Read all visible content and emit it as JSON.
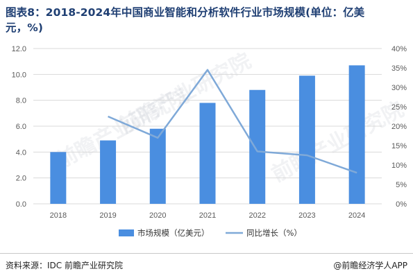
{
  "header": {
    "title_line1": "图表8：2018-2024年中国商业智能和分析软件行业市场规模(单位：亿美",
    "title_line2": "元，%)"
  },
  "footer": {
    "source": "资料来源：IDC 前瞻产业研究院",
    "brand": "@前瞻经济学人APP"
  },
  "watermark": {
    "text": "前瞻产业研究院"
  },
  "colors": {
    "bar": "#4a8ee0",
    "line": "#7fa9d8",
    "grid": "#d9d9d9",
    "axis_text": "#595959"
  },
  "chart_data": {
    "type": "bar",
    "categories": [
      "2018",
      "2019",
      "2020",
      "2021",
      "2022",
      "2023",
      "2024"
    ],
    "series": [
      {
        "name": "市场规模（亿美元）",
        "type": "bar",
        "axis": "left",
        "values": [
          4.0,
          4.9,
          5.8,
          7.8,
          8.8,
          9.9,
          10.7
        ]
      },
      {
        "name": "同比增长（%）",
        "type": "line",
        "axis": "right",
        "values": [
          null,
          22.5,
          17.0,
          34.5,
          13.5,
          12.5,
          8.0
        ]
      }
    ],
    "y_left": {
      "min": 0,
      "max": 12,
      "ticks": [
        "0.0",
        "2.0",
        "4.0",
        "6.0",
        "8.0",
        "10.0",
        "12.0"
      ],
      "tick_values": [
        0,
        2,
        4,
        6,
        8,
        10,
        12
      ]
    },
    "y_right": {
      "min": 0,
      "max": 40,
      "ticks": [
        "0%",
        "5%",
        "10%",
        "15%",
        "20%",
        "25%",
        "30%",
        "35%",
        "40%"
      ],
      "tick_values": [
        0,
        5,
        10,
        15,
        20,
        25,
        30,
        35,
        40
      ]
    },
    "grid": true,
    "legend_position": "bottom"
  }
}
